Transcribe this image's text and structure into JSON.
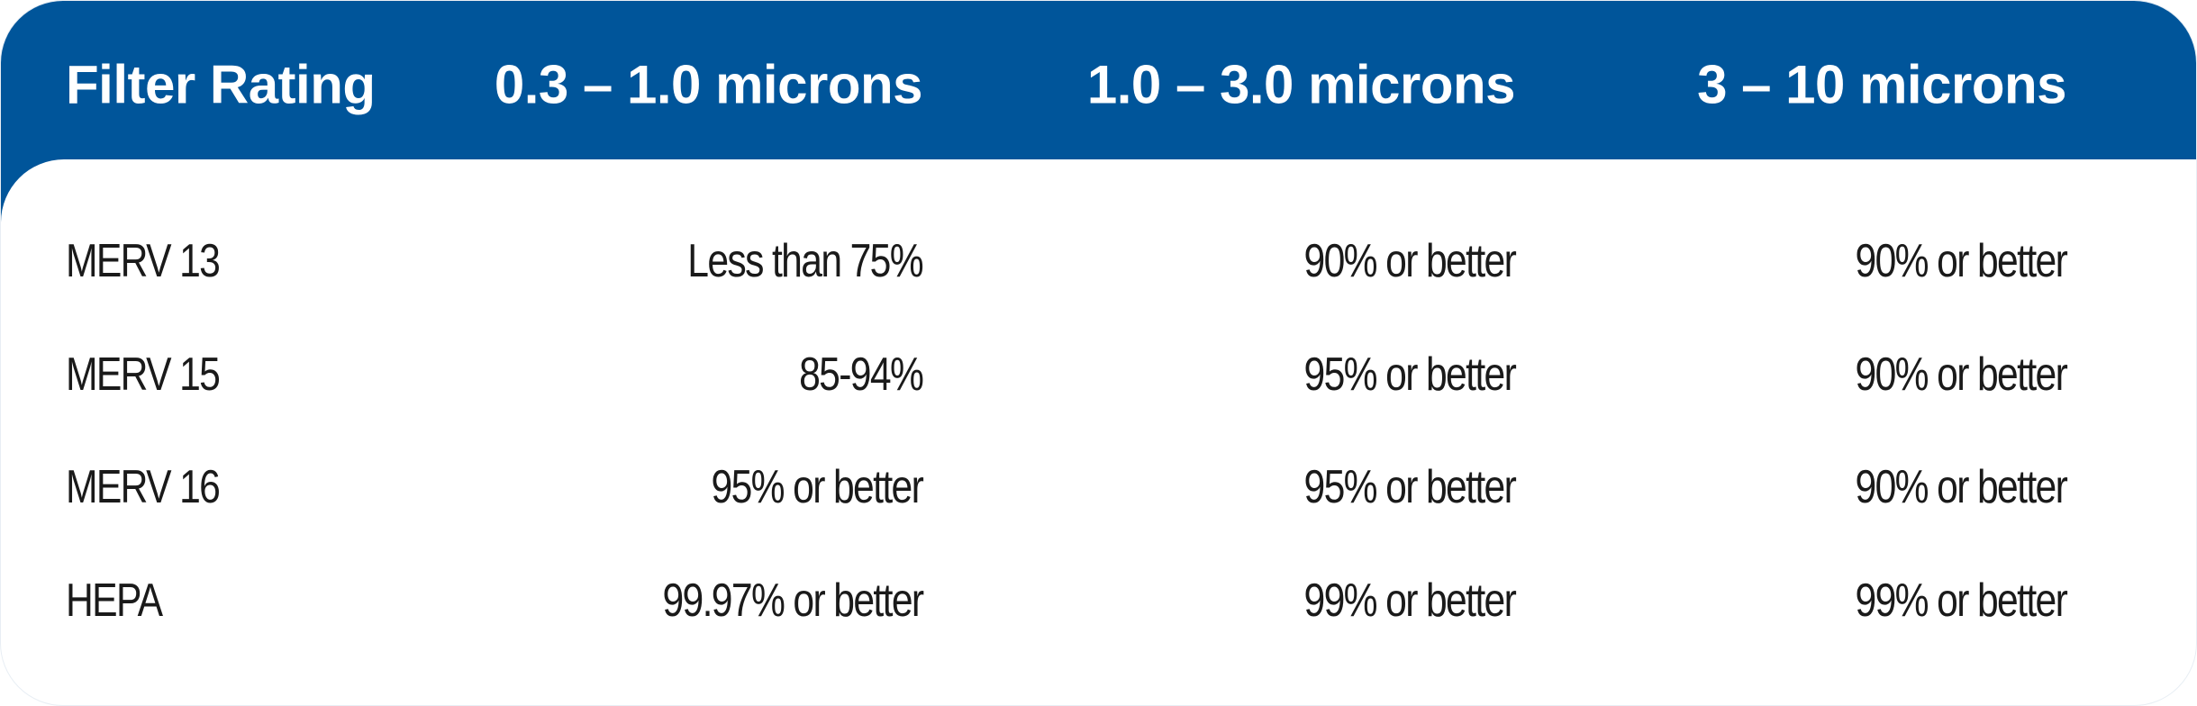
{
  "table": {
    "headers": [
      "Filter Rating",
      "0.3 – 1.0 microns",
      "1.0 – 3.0 microns",
      "3 – 10 microns"
    ],
    "rows": [
      [
        "MERV 13",
        "Less than 75%",
        "90% or better",
        "90% or better"
      ],
      [
        "MERV 15",
        "85-94%",
        "95% or better",
        "90% or better"
      ],
      [
        "MERV 16",
        "95% or better",
        "95% or better",
        "90% or better"
      ],
      [
        "HEPA",
        "99.97% or better",
        "99% or better",
        "99% or better"
      ]
    ]
  }
}
